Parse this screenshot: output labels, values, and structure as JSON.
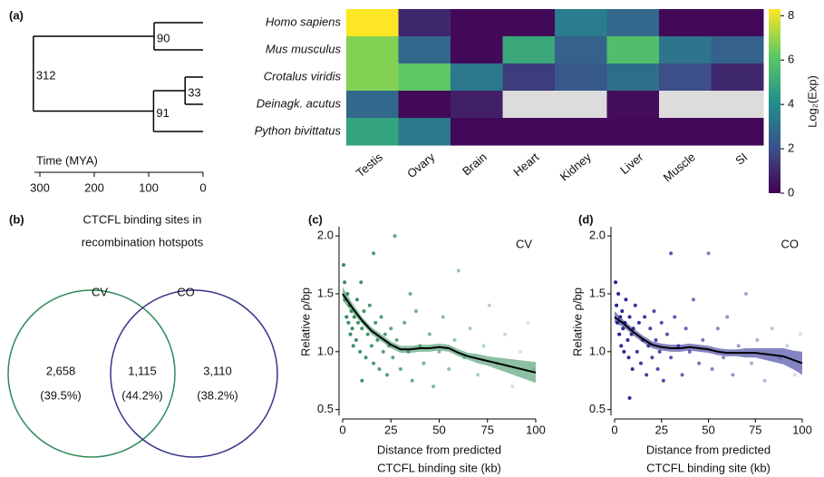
{
  "chart_data": [
    {
      "type": "tree",
      "panel": "(a)",
      "ages": [
        312,
        90,
        91,
        33
      ],
      "xlabel": "Time (MYA)",
      "xlim": [
        310,
        0
      ],
      "xticks": [
        300,
        200,
        100,
        0
      ],
      "color": "#000000"
    },
    {
      "type": "heatmap",
      "rows": [
        "Homo sapiens",
        "Mus musculus",
        "Crotalus viridis",
        "Deinagk. acutus",
        "Python bivittatus"
      ],
      "categories": [
        "Testis",
        "Ovary",
        "Brain",
        "Heart",
        "Kidney",
        "Liver",
        "Muscle",
        "SI"
      ],
      "values": [
        [
          8.4,
          1.0,
          0.2,
          0.2,
          3.5,
          2.8,
          0.2,
          0.2
        ],
        [
          6.7,
          2.8,
          0.2,
          5.0,
          2.6,
          5.8,
          3.2,
          2.6
        ],
        [
          6.7,
          6.2,
          3.3,
          1.5,
          2.3,
          3.0,
          2.0,
          1.0
        ],
        [
          2.8,
          0.2,
          0.8,
          null,
          null,
          0.3,
          null,
          null
        ],
        [
          4.8,
          3.3,
          0.2,
          0.2,
          0.2,
          0.2,
          0.2,
          0.2
        ]
      ],
      "colormap": "viridis",
      "null_color": "#dcdcdc",
      "zlim": [
        0,
        8.3
      ],
      "zticks": [
        0,
        2,
        4,
        6,
        8
      ],
      "zlabel": "Log₂(Exp)"
    },
    {
      "type": "venn",
      "panel": "(b)",
      "title": [
        "CTCFL binding sites in",
        "recombination hotspots"
      ],
      "sets": [
        {
          "name": "CV",
          "color": "#2e8b57"
        },
        {
          "name": "CO",
          "color": "#35358a"
        }
      ],
      "values": [
        2658,
        1115,
        3110
      ],
      "value_labels": [
        "2,658",
        "1,115",
        "3,110"
      ],
      "percents": [
        39.5,
        44.2,
        38.2
      ],
      "percent_labels": [
        "(39.5%)",
        "(44.2%)",
        "(38.2%)"
      ]
    },
    {
      "type": "scatter",
      "panel": "(c)",
      "ylabel": "Relative ρ/bp",
      "xlabel": [
        "Distance from predicted",
        "CTCFL binding site (kb)"
      ],
      "xlim": [
        0,
        100
      ],
      "xticks": [
        0,
        25,
        50,
        75,
        100
      ],
      "ylim": [
        0.45,
        2.08
      ],
      "yticks": [
        {
          "value": 0.5,
          "label": "0.5"
        },
        {
          "value": 1.0,
          "label": "1.0"
        },
        {
          "value": 1.5,
          "label": "1.5"
        },
        {
          "value": 2.0,
          "label": "2.0"
        }
      ],
      "series": [
        {
          "name": "CV",
          "color": "#2e8b57",
          "x": [
            0.5,
            1,
            1.5,
            2,
            2.5,
            3,
            3.5,
            4,
            4.5,
            5,
            5.5,
            6,
            7,
            7.5,
            8,
            9,
            9.5,
            10,
            11,
            12,
            13,
            14,
            15,
            16,
            17,
            18,
            19,
            20,
            21,
            22,
            23,
            24,
            25,
            26,
            27,
            28,
            30,
            32,
            34,
            36,
            38,
            40,
            42,
            45,
            47,
            50,
            52,
            55,
            58,
            60,
            63,
            66,
            70,
            73,
            76,
            80,
            84,
            88,
            92,
            96,
            99,
            16,
            10,
            35
          ],
          "values": [
            1.75,
            1.6,
            1.45,
            1.3,
            1.5,
            1.25,
            1.4,
            1.15,
            1.35,
            1.2,
            1.05,
            1.3,
            1.1,
            1.45,
            1.25,
            1.0,
            1.6,
            1.2,
            1.35,
            0.95,
            1.15,
            1.4,
            1.05,
            0.9,
            1.25,
            1.1,
            0.85,
            1.3,
            1.0,
            1.15,
            0.8,
            1.05,
            1.2,
            0.95,
            2.0,
            1.1,
            0.85,
            1.25,
            1.0,
            0.75,
            1.35,
            1.05,
            0.9,
            1.15,
            0.7,
            1.0,
            1.3,
            0.85,
            1.1,
            1.7,
            0.95,
            1.2,
            0.8,
            1.05,
            1.4,
            0.9,
            1.15,
            0.7,
            1.0,
            1.25,
            0.85,
            1.85,
            0.75,
            1.5
          ]
        }
      ],
      "smooth": {
        "color": "#000000",
        "band_color": "#2e8b57",
        "x": [
          0,
          5,
          10,
          15,
          20,
          25,
          30,
          35,
          40,
          45,
          50,
          55,
          60,
          65,
          70,
          75,
          80,
          85,
          90,
          95,
          100
        ],
        "values": [
          1.5,
          1.38,
          1.27,
          1.18,
          1.12,
          1.06,
          1.02,
          1.02,
          1.03,
          1.03,
          1.04,
          1.03,
          0.99,
          0.96,
          0.94,
          0.92,
          0.9,
          0.88,
          0.86,
          0.84,
          0.82
        ],
        "upper": [
          1.56,
          1.42,
          1.3,
          1.21,
          1.15,
          1.09,
          1.05,
          1.05,
          1.06,
          1.06,
          1.07,
          1.06,
          1.02,
          0.99,
          0.98,
          0.96,
          0.95,
          0.94,
          0.93,
          0.92,
          0.91
        ],
        "lower": [
          1.44,
          1.34,
          1.24,
          1.15,
          1.09,
          1.03,
          0.99,
          0.99,
          1.0,
          1.0,
          1.01,
          1.0,
          0.96,
          0.93,
          0.9,
          0.88,
          0.85,
          0.82,
          0.79,
          0.76,
          0.73
        ]
      }
    },
    {
      "type": "scatter",
      "panel": "(d)",
      "ylabel": "Relative ρ/bp",
      "xlabel": [
        "Distance from predicted",
        "CTCFL binding site (kb)"
      ],
      "xlim": [
        0,
        100
      ],
      "xticks": [
        0,
        25,
        50,
        75,
        100
      ],
      "ylim": [
        0.45,
        2.08
      ],
      "yticks": [
        {
          "value": 0.5,
          "label": "0.5"
        },
        {
          "value": 1.0,
          "label": "1.0"
        },
        {
          "value": 1.5,
          "label": "1.5"
        },
        {
          "value": 2.0,
          "label": "2.0"
        }
      ],
      "series": [
        {
          "name": "CO",
          "color": "#1f1f8f",
          "x": [
            0.5,
            1,
            1.5,
            2,
            2.5,
            3,
            3.5,
            4,
            4.5,
            5,
            5.5,
            6,
            7,
            7.5,
            8,
            9,
            9.5,
            10,
            11,
            12,
            13,
            14,
            15,
            16,
            17,
            18,
            19,
            20,
            21,
            22,
            23,
            24,
            25,
            26,
            28,
            30,
            32,
            34,
            36,
            38,
            40,
            42,
            45,
            47,
            50,
            52,
            55,
            58,
            60,
            63,
            66,
            70,
            73,
            76,
            80,
            84,
            88,
            92,
            96,
            99,
            8,
            30
          ],
          "values": [
            1.6,
            1.4,
            1.25,
            1.5,
            1.15,
            1.3,
            1.05,
            1.35,
            1.2,
            1.0,
            1.25,
            1.45,
            1.1,
            0.95,
            1.3,
            1.15,
            0.85,
            1.2,
            1.4,
            1.0,
            1.25,
            0.9,
            1.1,
            1.3,
            0.8,
            1.05,
            1.2,
            0.95,
            1.35,
            1.1,
            0.85,
            1.0,
            1.25,
            0.75,
            1.15,
            0.95,
            1.3,
            1.05,
            0.8,
            1.2,
            1.0,
            1.45,
            0.9,
            1.1,
            1.85,
            0.85,
            1.2,
            0.95,
            1.3,
            0.8,
            1.05,
            1.5,
            0.9,
            1.1,
            0.75,
            1.2,
            0.95,
            1.05,
            0.8,
            1.15,
            0.6,
            1.85
          ]
        }
      ],
      "smooth": {
        "color": "#000000",
        "band_color": "#1f1f8f",
        "x": [
          0,
          5,
          10,
          15,
          20,
          25,
          30,
          35,
          40,
          45,
          50,
          55,
          60,
          65,
          70,
          75,
          80,
          85,
          90,
          95,
          100
        ],
        "values": [
          1.3,
          1.24,
          1.17,
          1.11,
          1.06,
          1.04,
          1.03,
          1.03,
          1.04,
          1.03,
          1.02,
          1.0,
          0.99,
          0.99,
          0.99,
          0.99,
          0.98,
          0.97,
          0.96,
          0.93,
          0.9
        ],
        "upper": [
          1.35,
          1.27,
          1.2,
          1.14,
          1.09,
          1.07,
          1.06,
          1.06,
          1.07,
          1.06,
          1.05,
          1.03,
          1.02,
          1.02,
          1.03,
          1.03,
          1.03,
          1.03,
          1.03,
          1.01,
          1.0
        ],
        "lower": [
          1.25,
          1.21,
          1.14,
          1.08,
          1.03,
          1.01,
          1.0,
          1.0,
          1.01,
          1.0,
          0.99,
          0.97,
          0.96,
          0.96,
          0.95,
          0.95,
          0.93,
          0.91,
          0.89,
          0.85,
          0.8
        ]
      }
    }
  ]
}
